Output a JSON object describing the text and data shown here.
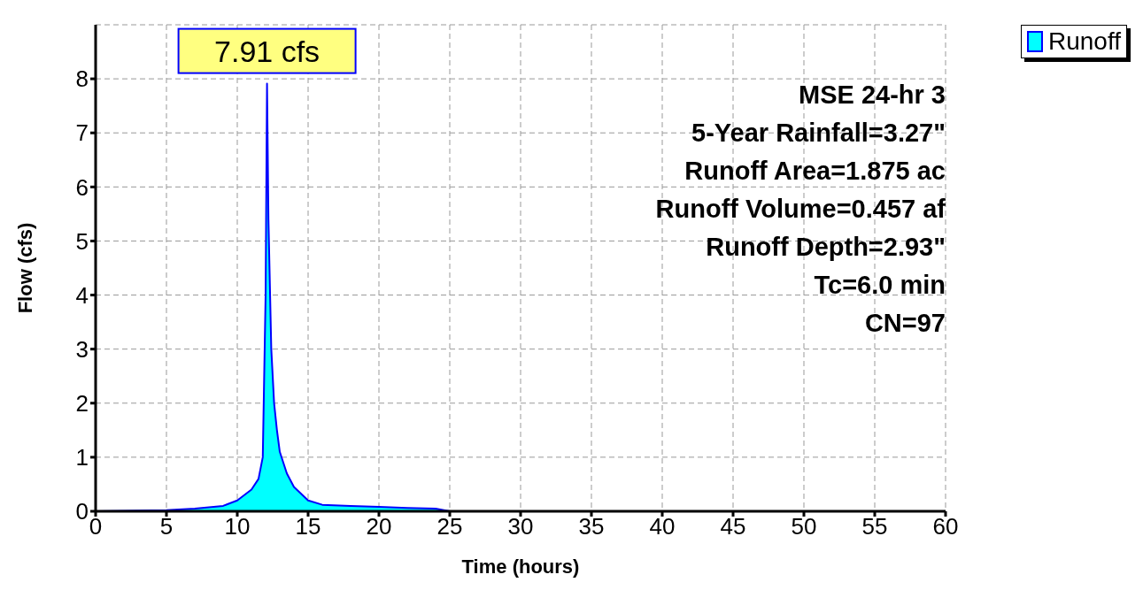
{
  "chart_data": {
    "type": "area",
    "xlabel": "Time  (hours)",
    "ylabel": "Flow  (cfs)",
    "x": [
      0,
      5,
      7,
      9,
      10,
      11,
      11.5,
      11.8,
      12.0,
      12.1,
      12.2,
      12.4,
      12.6,
      12.8,
      13.0,
      13.5,
      14,
      15,
      16,
      18,
      20,
      22,
      24,
      25,
      30,
      40,
      50,
      60
    ],
    "series": [
      {
        "name": "Runoff",
        "color": "#00ffff",
        "values": [
          0,
          0.02,
          0.05,
          0.1,
          0.2,
          0.4,
          0.6,
          1.0,
          4.0,
          7.91,
          5.4,
          3.0,
          2.0,
          1.5,
          1.1,
          0.7,
          0.45,
          0.2,
          0.12,
          0.1,
          0.08,
          0.06,
          0.05,
          0,
          0,
          0,
          0,
          0
        ]
      }
    ],
    "xlim": [
      0,
      60
    ],
    "xticks": [
      0,
      5,
      10,
      15,
      20,
      25,
      30,
      35,
      40,
      45,
      50,
      55,
      60
    ],
    "ylim": [
      0,
      9
    ],
    "yticks": [
      0,
      1,
      2,
      3,
      4,
      5,
      6,
      7,
      8
    ],
    "grid": true,
    "legend": "top right",
    "annotations": [
      {
        "text": "7.91 cfs",
        "x": 12.1,
        "y": 7.91
      },
      "MSE 24-hr 3",
      "5-Year Rainfall=3.27\"",
      "Runoff Area=1.875 ac",
      "Runoff Volume=0.457 af",
      "Runoff Depth=2.93\"",
      "Tc=6.0 min",
      "CN=97"
    ]
  }
}
